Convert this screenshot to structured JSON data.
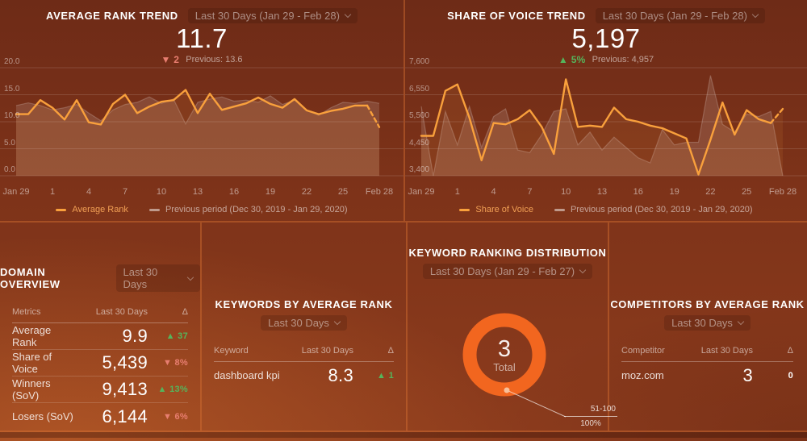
{
  "theme": {
    "background_top": "#6e2b17",
    "background_bottom": "#9a451f",
    "line_orange": "#f9a03c",
    "donut_orange": "#f2661f",
    "positive_green": "#55b45b",
    "negative_red": "#e87e70"
  },
  "panels": {
    "avg_rank_trend": {
      "title": "AVERAGE RANK TREND",
      "range_label": "Last 30 Days (Jan 29 - Feb 28)",
      "value": "11.7",
      "delta": {
        "dir": "down",
        "text": "2"
      },
      "previous_label": "Previous: 13.6",
      "legend": [
        "Average Rank",
        "Previous period (Dec 30, 2019 - Jan 29, 2020)"
      ]
    },
    "sov_trend": {
      "title": "SHARE OF VOICE TREND",
      "range_label": "Last 30 Days (Jan 29 - Feb 28)",
      "value": "5,197",
      "delta": {
        "dir": "up",
        "text": "5%"
      },
      "previous_label": "Previous: 4,957",
      "legend": [
        "Share of Voice",
        "Previous period (Dec 30, 2019 - Jan 29, 2020)"
      ]
    },
    "domain_overview": {
      "title": "DOMAIN OVERVIEW",
      "range_label": "Last 30 Days",
      "columns": [
        "Metrics",
        "Last 30 Days",
        "Δ"
      ],
      "rows": [
        {
          "label": "Average Rank",
          "value": "9.9",
          "delta": {
            "dir": "up",
            "text": "37"
          }
        },
        {
          "label": "Share of Voice",
          "value": "5,439",
          "delta": {
            "dir": "down",
            "text": "8%"
          }
        },
        {
          "label": "Winners (SoV)",
          "value": "9,413",
          "delta": {
            "dir": "up",
            "text": "13%"
          }
        },
        {
          "label": "Losers (SoV)",
          "value": "6,144",
          "delta": {
            "dir": "down",
            "text": "6%"
          }
        }
      ]
    },
    "keywords_by_avg_rank": {
      "title": "KEYWORDS BY AVERAGE RANK",
      "range_label": "Last 30 Days",
      "columns": [
        "Keyword",
        "Last 30 Days",
        "Δ"
      ],
      "rows": [
        {
          "label": "dashboard kpi",
          "value": "8.3",
          "delta": {
            "dir": "up",
            "text": "1"
          }
        }
      ]
    },
    "keyword_ranking_distribution": {
      "title": "KEYWORD RANKING DISTRIBUTION",
      "range_label": "Last 30 Days (Jan 29 - Feb 27)",
      "center_value": "3",
      "center_label": "Total",
      "callout_label": "51-100",
      "callout_percent": "100%"
    },
    "competitors_by_avg_rank": {
      "title": "COMPETITORS BY AVERAGE RANK",
      "range_label": "Last 30 Days",
      "columns": [
        "Competitor",
        "Last 30 Days",
        "Δ"
      ],
      "rows": [
        {
          "label": "moz.com",
          "value": "3",
          "delta": {
            "dir": "none",
            "text": "0"
          }
        }
      ]
    }
  },
  "chart_data": [
    {
      "id": "average-rank-trend",
      "type": "line",
      "title": "AVERAGE RANK TREND",
      "ylim": [
        0,
        20
      ],
      "grid": true,
      "legend_position": "bottom",
      "yticks": [
        {
          "value": 20,
          "label": "20.0"
        },
        {
          "value": 15,
          "label": "15.0"
        },
        {
          "value": 10,
          "label": "10.0"
        },
        {
          "value": 5,
          "label": "5.0"
        },
        {
          "value": 0,
          "label": "0.0"
        }
      ],
      "x_tick_labels": [
        "Jan 29",
        "1",
        "4",
        "7",
        "10",
        "13",
        "16",
        "19",
        "22",
        "25",
        "Feb 28"
      ],
      "x_tick_indices": [
        0,
        3,
        6,
        9,
        12,
        15,
        18,
        21,
        24,
        27,
        30
      ],
      "series": [
        {
          "name": "Average Rank",
          "type": "line",
          "color": "#f9a03c",
          "dashed_tail": true,
          "values": [
            11.4,
            11.4,
            14.0,
            12.6,
            10.4,
            14.0,
            9.9,
            9.5,
            13.3,
            15.0,
            11.6,
            12.8,
            13.7,
            14.0,
            15.9,
            11.6,
            15.2,
            12.2,
            12.8,
            13.4,
            14.5,
            13.3,
            12.6,
            14.2,
            12.1,
            11.4,
            12.0,
            12.4,
            13.0,
            13.0,
            9.0
          ]
        },
        {
          "name": "Previous period (Dec 30, 2019 - Jan 29, 2020)",
          "type": "area",
          "color": "rgba(255,255,255,0.13)",
          "values": [
            13.0,
            13.5,
            13.0,
            12.2,
            12.6,
            13.2,
            11.6,
            10.2,
            12.2,
            13.2,
            13.6,
            14.6,
            13.4,
            14.2,
            9.6,
            13.6,
            14.2,
            14.6,
            13.8,
            14.0,
            13.6,
            14.8,
            13.2,
            14.0,
            12.2,
            11.2,
            12.6,
            13.6,
            13.4,
            13.8,
            13.4
          ]
        }
      ]
    },
    {
      "id": "share-of-voice-trend",
      "type": "line",
      "title": "SHARE OF VOICE TREND",
      "ylim": [
        3400,
        7600
      ],
      "grid": true,
      "legend_position": "bottom",
      "yticks": [
        {
          "value": 7600,
          "label": "7,600"
        },
        {
          "value": 6550,
          "label": "6,550"
        },
        {
          "value": 5500,
          "label": "5,500"
        },
        {
          "value": 4450,
          "label": "4,450"
        },
        {
          "value": 3400,
          "label": "3,400"
        }
      ],
      "x_tick_labels": [
        "Jan 29",
        "1",
        "4",
        "7",
        "10",
        "13",
        "16",
        "19",
        "22",
        "25",
        "Feb 28"
      ],
      "x_tick_indices": [
        0,
        3,
        6,
        9,
        12,
        15,
        18,
        21,
        24,
        27,
        30
      ],
      "series": [
        {
          "name": "Share of Voice",
          "type": "line",
          "color": "#f9a03c",
          "dashed_tail": true,
          "values": [
            4950,
            4950,
            6700,
            6950,
            5650,
            4000,
            5450,
            5400,
            5600,
            5950,
            5300,
            4250,
            7150,
            5300,
            5350,
            5300,
            6050,
            5600,
            5500,
            5350,
            5250,
            5050,
            4850,
            3450,
            4800,
            6250,
            5000,
            5950,
            5600,
            5450,
            6000
          ]
        },
        {
          "name": "Previous period (Dec 30, 2019 - Jan 29, 2020)",
          "type": "area",
          "color": "rgba(255,255,255,0.13)",
          "values": [
            6100,
            3400,
            5900,
            4600,
            6100,
            4500,
            5700,
            6000,
            4400,
            4300,
            5000,
            5900,
            6000,
            4600,
            5100,
            4400,
            4900,
            4500,
            4100,
            3900,
            5200,
            4600,
            4700,
            4700,
            7300,
            5400,
            5100,
            5800,
            5700,
            5900,
            3400
          ]
        }
      ]
    },
    {
      "id": "keyword-ranking-distribution",
      "type": "pie",
      "title": "KEYWORD RANKING DISTRIBUTION",
      "total": 3,
      "center_label": "Total",
      "segments": [
        {
          "label": "51-100",
          "value": 3,
          "percent": 100,
          "color": "#f2661f"
        }
      ]
    }
  ]
}
